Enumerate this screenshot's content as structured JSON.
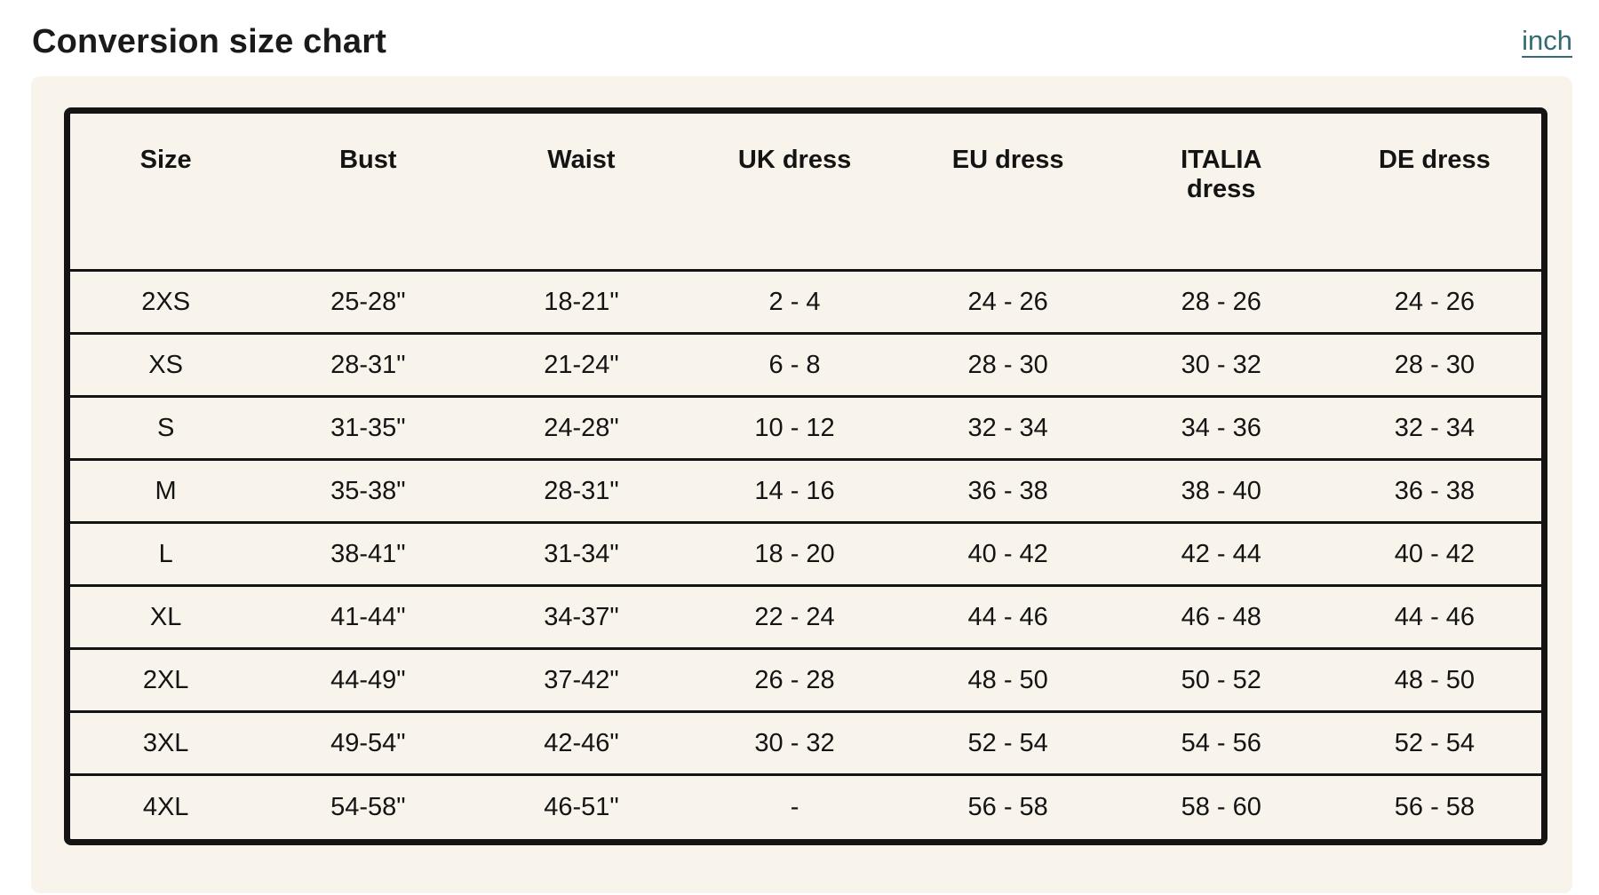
{
  "page": {
    "title": "Conversion size chart",
    "unit_link": "inch"
  },
  "colors": {
    "accent_teal": "#346b74",
    "panel_cream": "#f8f4ec",
    "border_black": "#141414"
  },
  "chart_data": {
    "type": "table",
    "title": "Conversion size chart",
    "columns": [
      "Size",
      "Bust",
      "Waist",
      "UK dress",
      "EU dress",
      "ITALIA dress",
      "DE dress"
    ],
    "rows": [
      [
        "2XS",
        "25-28\"",
        "18-21\"",
        "2 - 4",
        "24 - 26",
        "28 - 26",
        "24 - 26"
      ],
      [
        "XS",
        "28-31\"",
        "21-24\"",
        "6 - 8",
        "28 - 30",
        "30 - 32",
        "28 - 30"
      ],
      [
        "S",
        "31-35\"",
        "24-28\"",
        "10 - 12",
        "32 - 34",
        "34 - 36",
        "32 - 34"
      ],
      [
        "M",
        "35-38\"",
        "28-31\"",
        "14 - 16",
        "36 - 38",
        "38 - 40",
        "36 - 38"
      ],
      [
        "L",
        "38-41\"",
        "31-34\"",
        "18 - 20",
        "40 - 42",
        "42 - 44",
        "40 - 42"
      ],
      [
        "XL",
        "41-44\"",
        "34-37\"",
        "22 - 24",
        "44 - 46",
        "46 - 48",
        "44 - 46"
      ],
      [
        "2XL",
        "44-49\"",
        "37-42\"",
        "26 - 28",
        "48 - 50",
        "50 - 52",
        "48 - 50"
      ],
      [
        "3XL",
        "49-54\"",
        "42-46\"",
        "30 - 32",
        "52 - 54",
        "54 - 56",
        "52 - 54"
      ],
      [
        "4XL",
        "54-58\"",
        "46-51\"",
        "-",
        "56 - 58",
        "58 - 60",
        "56 - 58"
      ]
    ]
  }
}
